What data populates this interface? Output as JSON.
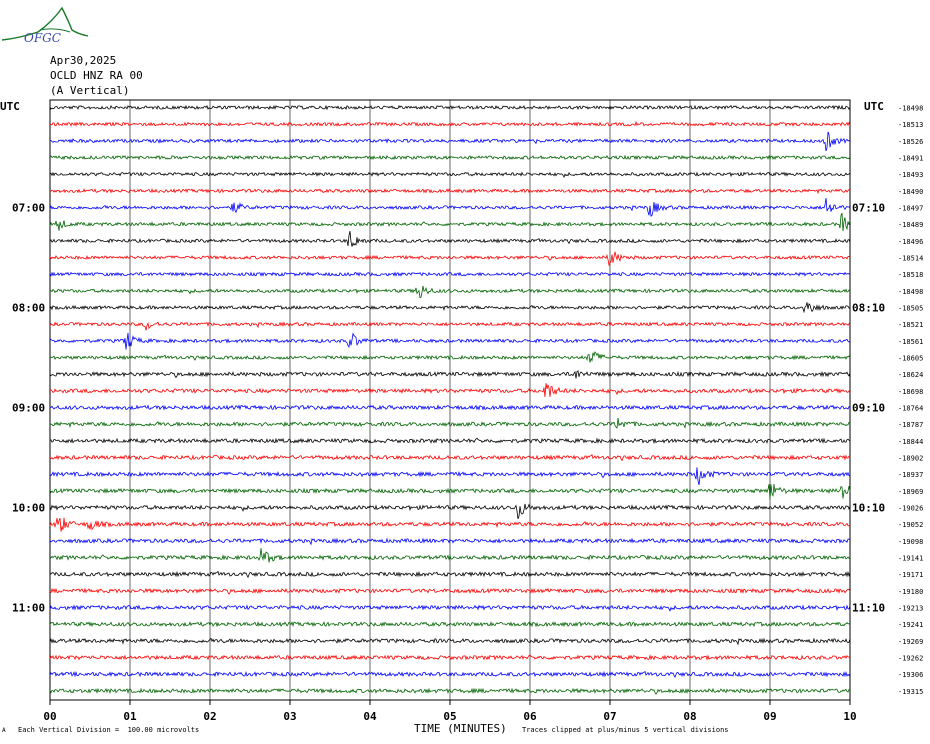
{
  "header": {
    "date": "Apr30,2025",
    "channel": "OCLD HNZ RA 00",
    "component": "(A Vertical)",
    "utc_left": "UTC",
    "utc_right": "UTC",
    "logo_text": "OFGC"
  },
  "footer": {
    "left": "Each Vertical Division =  100.00 microvolts",
    "right": "Traces clipped at plus/minus 5 vertical divisions",
    "mark": "A"
  },
  "chart_data": {
    "type": "line",
    "title": "",
    "xlabel": "TIME (MINUTES)",
    "ylabel": "",
    "xlim": [
      0,
      10
    ],
    "x_ticks": [
      "00",
      "01",
      "02",
      "03",
      "04",
      "05",
      "06",
      "07",
      "08",
      "09",
      "10"
    ],
    "left_time_labels": [
      {
        "row": 6,
        "label": "07:00"
      },
      {
        "row": 12,
        "label": "08:00"
      },
      {
        "row": 18,
        "label": "09:00"
      },
      {
        "row": 24,
        "label": "10:00"
      },
      {
        "row": 30,
        "label": "11:00"
      }
    ],
    "right_time_labels": [
      {
        "row": 6,
        "label": "07:10"
      },
      {
        "row": 12,
        "label": "08:10"
      },
      {
        "row": 18,
        "label": "09:10"
      },
      {
        "row": 24,
        "label": "10:10"
      },
      {
        "row": 30,
        "label": "11:10"
      }
    ],
    "colors": [
      "#000000",
      "#ff0000",
      "#0000ff",
      "#006400"
    ],
    "trace_offsets": [
      "-18498",
      "-18513",
      "-18526",
      "-18491",
      "-18493",
      "-18490",
      "-18497",
      "-18489",
      "-18496",
      "-18514",
      "-18518",
      "-18498",
      "-18505",
      "-18521",
      "-18561",
      "-18605",
      "-18624",
      "-18698",
      "-18764",
      "-18787",
      "-18844",
      "-18902",
      "-18937",
      "-18969",
      "-19026",
      "-19052",
      "-19098",
      "-19141",
      "-19171",
      "-19180",
      "-19213",
      "-19241",
      "-19269",
      "-19262",
      "-19306",
      "-19315"
    ],
    "events": [
      {
        "row": 2,
        "minute": 9.7,
        "amp": 1.0
      },
      {
        "row": 6,
        "minute": 2.3,
        "amp": 0.6
      },
      {
        "row": 6,
        "minute": 7.5,
        "amp": 0.9
      },
      {
        "row": 6,
        "minute": 9.7,
        "amp": 1.0
      },
      {
        "row": 7,
        "minute": 0.1,
        "amp": 0.6
      },
      {
        "row": 7,
        "minute": 9.9,
        "amp": 1.0
      },
      {
        "row": 8,
        "minute": 3.75,
        "amp": 1.0
      },
      {
        "row": 9,
        "minute": 7.0,
        "amp": 1.0
      },
      {
        "row": 11,
        "minute": 4.6,
        "amp": 1.0
      },
      {
        "row": 12,
        "minute": 9.45,
        "amp": 1.0
      },
      {
        "row": 13,
        "minute": 1.2,
        "amp": 0.5
      },
      {
        "row": 14,
        "minute": 0.95,
        "amp": 1.0
      },
      {
        "row": 14,
        "minute": 3.75,
        "amp": 1.0
      },
      {
        "row": 15,
        "minute": 6.75,
        "amp": 1.0
      },
      {
        "row": 16,
        "minute": 6.55,
        "amp": 0.5
      },
      {
        "row": 17,
        "minute": 6.2,
        "amp": 1.0
      },
      {
        "row": 19,
        "minute": 7.1,
        "amp": 0.6
      },
      {
        "row": 22,
        "minute": 8.1,
        "amp": 1.0
      },
      {
        "row": 23,
        "minute": 9.0,
        "amp": 1.0
      },
      {
        "row": 23,
        "minute": 9.9,
        "amp": 1.0
      },
      {
        "row": 24,
        "minute": 5.85,
        "amp": 1.0
      },
      {
        "row": 25,
        "minute": 0.1,
        "amp": 1.2
      },
      {
        "row": 25,
        "minute": 0.5,
        "amp": 0.6
      },
      {
        "row": 27,
        "minute": 2.65,
        "amp": 1.0
      }
    ]
  }
}
